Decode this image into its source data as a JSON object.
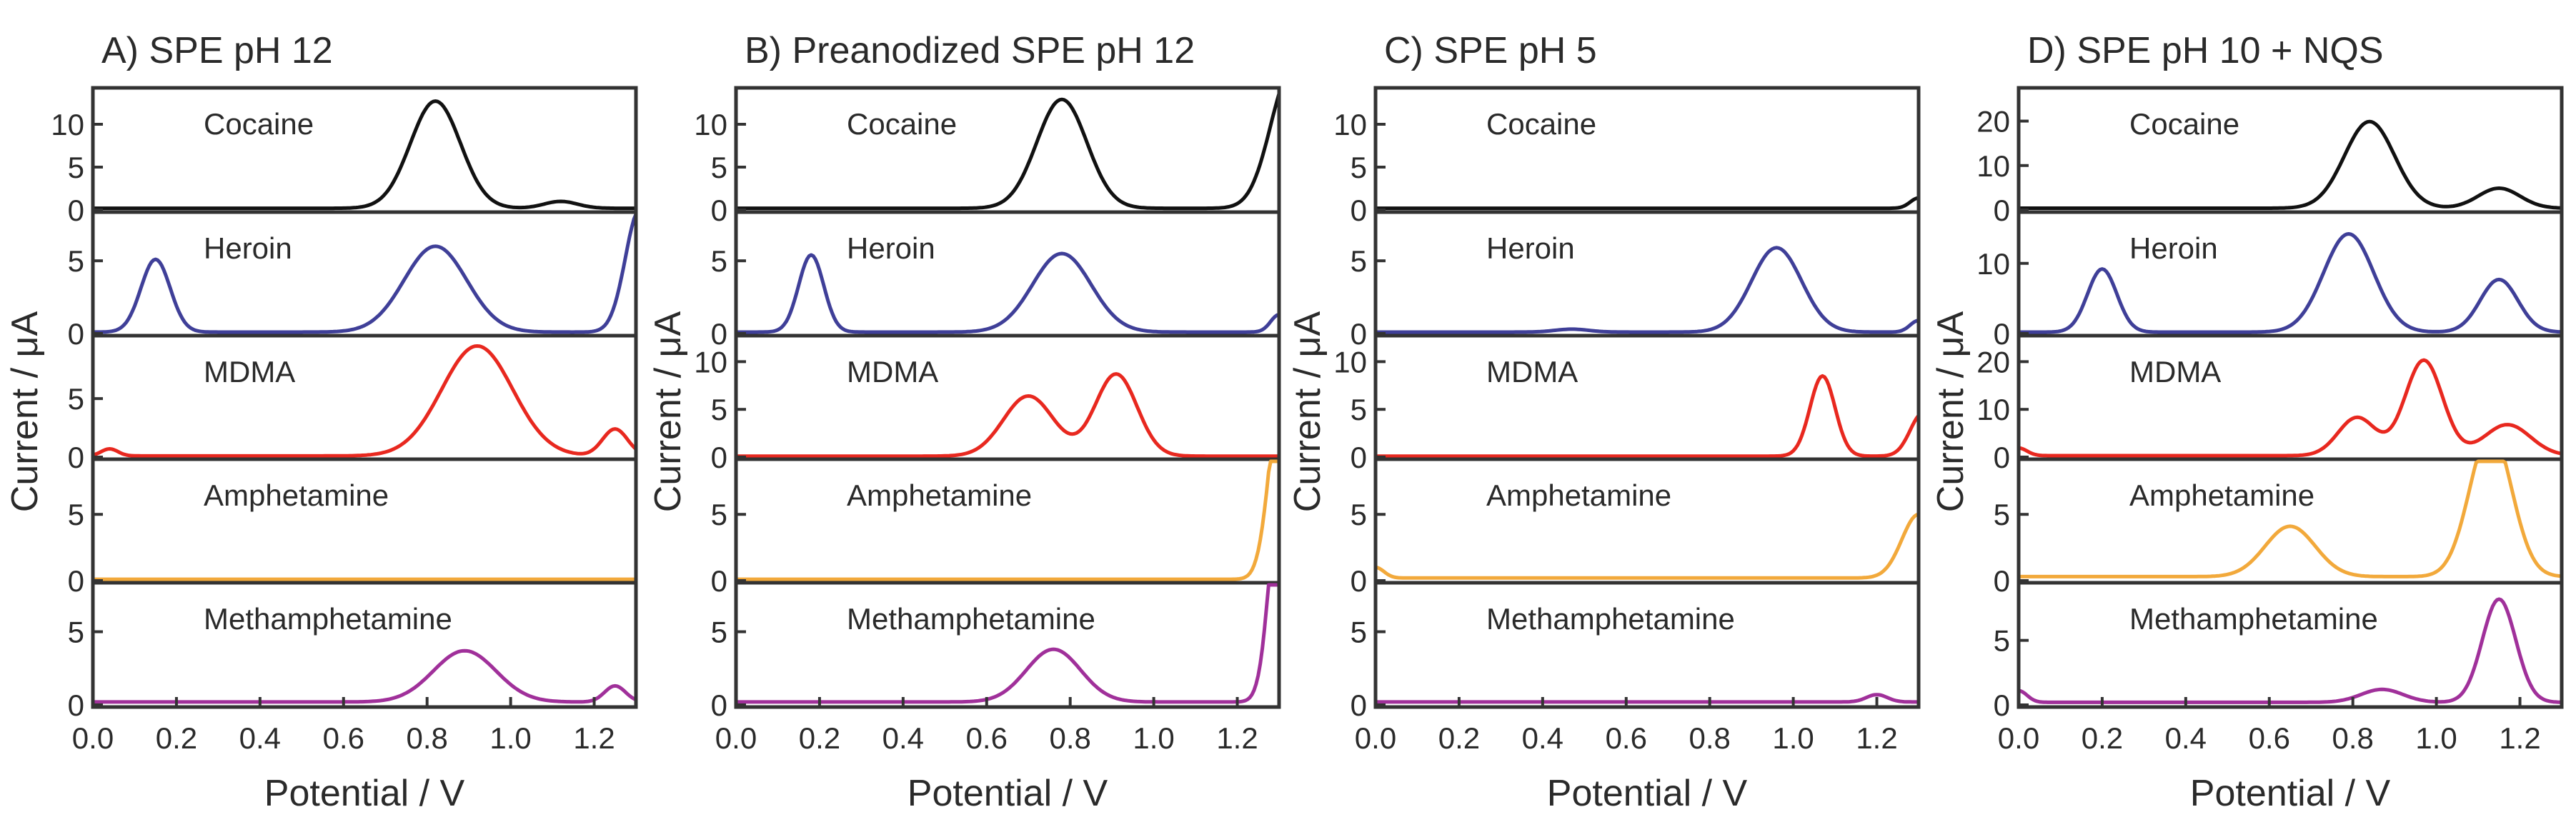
{
  "chart_data": {
    "type": "line",
    "xlabel": "Potential / V",
    "ylabel": "Current / μA",
    "xlim": [
      0,
      1.3
    ],
    "xticks": [
      0.0,
      0.2,
      0.4,
      0.6,
      0.8,
      1.0,
      1.2
    ],
    "xtick_labels": [
      "0.0",
      "0.2",
      "0.4",
      "0.6",
      "0.8",
      "1.0",
      "1.2"
    ],
    "colors": {
      "Cocaine": "#111111",
      "Heroin": "#3f3f98",
      "MDMA": "#e8281f",
      "Amphetamine": "#f2a93b",
      "Methamphetamine": "#a0309a"
    },
    "panels": [
      {
        "title": "A) SPE pH 12",
        "traces": [
          {
            "name": "Cocaine",
            "ylim": [
              0,
              14
            ],
            "yticks": [
              0,
              5,
              10
            ],
            "baseline": 0.2,
            "peaks": [
              {
                "x": 0.82,
                "h": 12.5,
                "w": 0.06
              },
              {
                "x": 1.12,
                "h": 0.8,
                "w": 0.04
              }
            ]
          },
          {
            "name": "Heroin",
            "ylim": [
              0,
              8.2
            ],
            "yticks": [
              0,
              5
            ],
            "baseline": 0.1,
            "peaks": [
              {
                "x": 0.15,
                "h": 5.0,
                "w": 0.035
              },
              {
                "x": 0.82,
                "h": 5.9,
                "w": 0.075
              },
              {
                "x": 1.31,
                "h": 8.5,
                "w": 0.035
              }
            ]
          },
          {
            "name": "MDMA",
            "ylim": [
              0,
              10.2
            ],
            "yticks": [
              0,
              5
            ],
            "baseline": 0.1,
            "peaks": [
              {
                "x": 0.04,
                "h": 0.6,
                "w": 0.02
              },
              {
                "x": 0.92,
                "h": 9.4,
                "w": 0.085
              },
              {
                "x": 1.25,
                "h": 2.3,
                "w": 0.03
              }
            ]
          },
          {
            "name": "Amphetamine",
            "ylim": [
              0,
              9
            ],
            "yticks": [
              0,
              5
            ],
            "baseline": 0.1,
            "peaks": []
          },
          {
            "name": "Methamphetamine",
            "ylim": [
              0,
              8.2
            ],
            "yticks": [
              0,
              5
            ],
            "baseline": 0.2,
            "peaks": [
              {
                "x": 0.89,
                "h": 3.5,
                "w": 0.075
              },
              {
                "x": 1.25,
                "h": 1.1,
                "w": 0.025
              }
            ]
          }
        ]
      },
      {
        "title": "B) Preanodized SPE pH 12",
        "traces": [
          {
            "name": "Cocaine",
            "ylim": [
              0,
              14
            ],
            "yticks": [
              0,
              5,
              10
            ],
            "baseline": 0.2,
            "peaks": [
              {
                "x": 0.78,
                "h": 12.7,
                "w": 0.06
              },
              {
                "x": 1.33,
                "h": 16.0,
                "w": 0.05
              }
            ]
          },
          {
            "name": "Heroin",
            "ylim": [
              0,
              8.2
            ],
            "yticks": [
              0,
              5
            ],
            "baseline": 0.1,
            "peaks": [
              {
                "x": 0.18,
                "h": 5.3,
                "w": 0.03
              },
              {
                "x": 0.78,
                "h": 5.4,
                "w": 0.07
              },
              {
                "x": 1.3,
                "h": 1.2,
                "w": 0.02
              }
            ]
          },
          {
            "name": "MDMA",
            "ylim": [
              0,
              12.5
            ],
            "yticks": [
              0,
              5,
              10
            ],
            "baseline": 0.1,
            "peaks": [
              {
                "x": 0.7,
                "h": 6.3,
                "w": 0.06
              },
              {
                "x": 0.91,
                "h": 8.6,
                "w": 0.05
              }
            ]
          },
          {
            "name": "Amphetamine",
            "ylim": [
              0,
              9
            ],
            "yticks": [
              0,
              5
            ],
            "baseline": 0.1,
            "peaks": [
              {
                "x": 1.31,
                "h": 16.0,
                "w": 0.03
              }
            ]
          },
          {
            "name": "Methamphetamine",
            "ylim": [
              0,
              8.2
            ],
            "yticks": [
              0,
              5
            ],
            "baseline": 0.2,
            "peaks": [
              {
                "x": 0.76,
                "h": 3.6,
                "w": 0.065
              },
              {
                "x": 1.31,
                "h": 18.0,
                "w": 0.028
              }
            ]
          }
        ]
      },
      {
        "title": "C) SPE pH 5",
        "traces": [
          {
            "name": "Cocaine",
            "ylim": [
              0,
              14
            ],
            "yticks": [
              0,
              5,
              10
            ],
            "baseline": 0.2,
            "peaks": [
              {
                "x": 1.3,
                "h": 1.2,
                "w": 0.02
              }
            ]
          },
          {
            "name": "Heroin",
            "ylim": [
              0,
              8.2
            ],
            "yticks": [
              0,
              5
            ],
            "baseline": 0.1,
            "peaks": [
              {
                "x": 0.47,
                "h": 0.2,
                "w": 0.04
              },
              {
                "x": 0.96,
                "h": 5.8,
                "w": 0.06
              },
              {
                "x": 1.3,
                "h": 0.8,
                "w": 0.02
              }
            ]
          },
          {
            "name": "MDMA",
            "ylim": [
              0,
              12.5
            ],
            "yticks": [
              0,
              5,
              10
            ],
            "baseline": 0.1,
            "peaks": [
              {
                "x": 1.07,
                "h": 8.4,
                "w": 0.03
              },
              {
                "x": 1.31,
                "h": 4.5,
                "w": 0.03
              }
            ]
          },
          {
            "name": "Amphetamine",
            "ylim": [
              0,
              9
            ],
            "yticks": [
              0,
              5
            ],
            "baseline": 0.2,
            "peaks": [
              {
                "x": 0.0,
                "h": 0.8,
                "w": 0.02
              },
              {
                "x": 1.3,
                "h": 4.8,
                "w": 0.04
              }
            ]
          },
          {
            "name": "Methamphetamine",
            "ylim": [
              0,
              8.2
            ],
            "yticks": [
              0,
              5
            ],
            "baseline": 0.2,
            "peaks": [
              {
                "x": 1.2,
                "h": 0.5,
                "w": 0.025
              }
            ]
          }
        ]
      },
      {
        "title": "D) SPE pH 10 + NQS",
        "traces": [
          {
            "name": "Cocaine",
            "ylim": [
              0,
              27
            ],
            "yticks": [
              0,
              10,
              20
            ],
            "baseline": 0.4,
            "peaks": [
              {
                "x": 0.84,
                "h": 19.5,
                "w": 0.06
              },
              {
                "x": 1.15,
                "h": 4.5,
                "w": 0.05
              }
            ]
          },
          {
            "name": "Heroin",
            "ylim": [
              0,
              17
            ],
            "yticks": [
              0,
              10
            ],
            "baseline": 0.2,
            "peaks": [
              {
                "x": 0.2,
                "h": 9.0,
                "w": 0.035
              },
              {
                "x": 0.79,
                "h": 14.0,
                "w": 0.06
              },
              {
                "x": 1.15,
                "h": 7.5,
                "w": 0.045
              }
            ]
          },
          {
            "name": "MDMA",
            "ylim": [
              0,
              25
            ],
            "yticks": [
              0,
              10,
              20
            ],
            "baseline": 0.3,
            "peaks": [
              {
                "x": 0.0,
                "h": 1.6,
                "w": 0.02
              },
              {
                "x": 0.81,
                "h": 8.0,
                "w": 0.045
              },
              {
                "x": 0.97,
                "h": 20.0,
                "w": 0.045
              },
              {
                "x": 1.17,
                "h": 6.5,
                "w": 0.055
              }
            ]
          },
          {
            "name": "Amphetamine",
            "ylim": [
              0,
              9
            ],
            "yticks": [
              0,
              5
            ],
            "baseline": 0.3,
            "peaks": [
              {
                "x": 0.65,
                "h": 3.8,
                "w": 0.06
              },
              {
                "x": 1.13,
                "h": 11.0,
                "w": 0.05
              }
            ]
          },
          {
            "name": "Methamphetamine",
            "ylim": [
              0,
              9.3
            ],
            "yticks": [
              0,
              5
            ],
            "baseline": 0.2,
            "peaks": [
              {
                "x": 0.0,
                "h": 0.9,
                "w": 0.02
              },
              {
                "x": 0.87,
                "h": 1.0,
                "w": 0.05
              },
              {
                "x": 1.15,
                "h": 8.0,
                "w": 0.04
              }
            ]
          }
        ]
      }
    ]
  }
}
